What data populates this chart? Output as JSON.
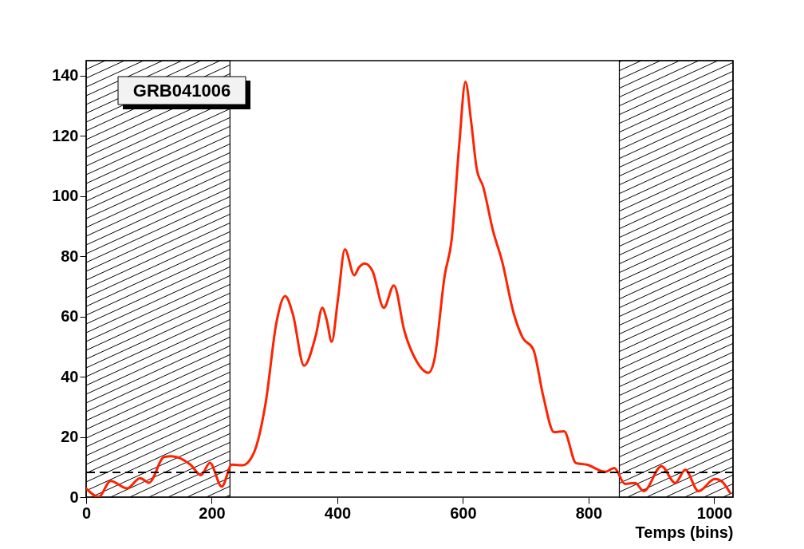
{
  "chart_data": {
    "type": "line",
    "xlabel": "Temps (bins)",
    "annotations": [
      "GRB041006"
    ],
    "xlim": [
      0,
      1030
    ],
    "xticks": [
      0,
      200,
      400,
      600,
      800,
      1000
    ],
    "ylim": [
      0,
      145
    ],
    "yticks": [
      0,
      20,
      40,
      60,
      80,
      100,
      120,
      140
    ],
    "grid": false,
    "bands": [
      {
        "axis": "x",
        "from": 0,
        "to": 229,
        "color": "#000000"
      },
      {
        "axis": "x",
        "from": 849,
        "to": 1030,
        "color": "#000000"
      }
    ],
    "ref_lines": [
      {
        "axis": "y",
        "value": 8.2,
        "color": "#000000",
        "line_style": "dashed"
      }
    ],
    "series": [
      {
        "color": "#ff2200",
        "line_style": "solid",
        "x": [
          0,
          20,
          39,
          65,
          86,
          100,
          124,
          136,
          166,
          183,
          197,
          216,
          232,
          249,
          267,
          286,
          303,
          317,
          329,
          347,
          366,
          376,
          383,
          391,
          401,
          412,
          427,
          434,
          444,
          456,
          474,
          490,
          507,
          526,
          545,
          554,
          571,
          582,
          594,
          604,
          613,
          622,
          632,
          648,
          662,
          681,
          695,
          712,
          728,
          745,
          761,
          780,
          797,
          827,
          841,
          858,
          874,
          888,
          916,
          938,
          954,
          975,
          1001,
          1011,
          1025
        ],
        "values": [
          2.9,
          0.1,
          5.4,
          2.9,
          6.3,
          4.8,
          13.3,
          13.6,
          10.8,
          7.3,
          11.4,
          3.5,
          10.8,
          10.6,
          14.7,
          31.5,
          58,
          66.8,
          60.9,
          43.7,
          54,
          62.9,
          58.9,
          51.6,
          65.8,
          82.3,
          73.7,
          76.2,
          77.6,
          75.1,
          62.9,
          70.3,
          55,
          45.2,
          41.3,
          45.2,
          73.7,
          85.5,
          116.9,
          138,
          124.8,
          109,
          103.2,
          88.4,
          78.6,
          60.9,
          53,
          49.1,
          33.4,
          21.6,
          21.9,
          11.3,
          10.8,
          8.4,
          9.7,
          4.4,
          4.7,
          2,
          10.3,
          4.7,
          9.1,
          2,
          6,
          5.4,
          1.5
        ]
      }
    ]
  }
}
